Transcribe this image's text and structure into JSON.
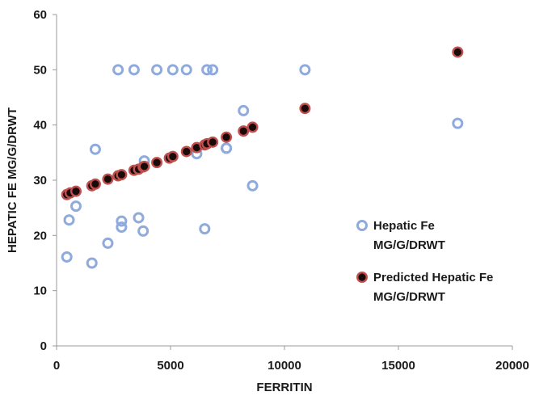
{
  "chart_data": {
    "type": "scatter",
    "xlabel": "FERRITIN",
    "ylabel": "HEPATIC FE MG/G/DRWT",
    "xlim": [
      0,
      20000
    ],
    "ylim": [
      0,
      60
    ],
    "x_ticks": [
      "0",
      "5000",
      "10000",
      "15000",
      "20000"
    ],
    "y_ticks": [
      "0",
      "10",
      "20",
      "30",
      "40",
      "50",
      "60"
    ],
    "grid": false,
    "legend_position": "right",
    "series": [
      {
        "name": "Hepatic Fe MG/G/DRWT",
        "legend_lines": [
          "Hepatic Fe",
          "MG/G/DRWT"
        ],
        "marker": "hollow-circle",
        "color": "#8FAADC",
        "points": [
          [
            2700,
            50
          ],
          [
            3400,
            50
          ],
          [
            4400,
            50
          ],
          [
            5100,
            50
          ],
          [
            5700,
            50
          ],
          [
            6600,
            50
          ],
          [
            6850,
            50
          ],
          [
            10900,
            50
          ],
          [
            17600,
            40.3
          ],
          [
            8200,
            42.6
          ],
          [
            7450,
            35.8
          ],
          [
            7450,
            35.8
          ],
          [
            6150,
            34.8
          ],
          [
            8600,
            29.0
          ],
          [
            1700,
            35.6
          ],
          [
            3850,
            33.5
          ],
          [
            850,
            25.3
          ],
          [
            550,
            22.8
          ],
          [
            2850,
            22.6
          ],
          [
            2850,
            21.5
          ],
          [
            3600,
            23.2
          ],
          [
            3800,
            20.8
          ],
          [
            2250,
            18.6
          ],
          [
            6500,
            21.2
          ],
          [
            450,
            16.1
          ],
          [
            1550,
            15.0
          ]
        ]
      },
      {
        "name": "Predicted Hepatic Fe MG/G/DRWT",
        "legend_lines": [
          "Predicted Hepatic Fe",
          "MG/G/DRWT"
        ],
        "marker": "filled-circle",
        "color": "#1a0a0a",
        "edge_color": "#C0504D",
        "points": [
          [
            450,
            27.4
          ],
          [
            600,
            27.7
          ],
          [
            850,
            28.0
          ],
          [
            1550,
            29.0
          ],
          [
            1700,
            29.3
          ],
          [
            2250,
            30.2
          ],
          [
            2700,
            30.8
          ],
          [
            2850,
            31.0
          ],
          [
            3400,
            31.8
          ],
          [
            3600,
            32.0
          ],
          [
            3800,
            32.4
          ],
          [
            3850,
            32.5
          ],
          [
            4400,
            33.2
          ],
          [
            4950,
            34.0
          ],
          [
            5100,
            34.3
          ],
          [
            5700,
            35.2
          ],
          [
            6150,
            35.9
          ],
          [
            6500,
            36.4
          ],
          [
            6600,
            36.6
          ],
          [
            6850,
            36.9
          ],
          [
            7450,
            37.8
          ],
          [
            8200,
            38.9
          ],
          [
            8600,
            39.6
          ],
          [
            10900,
            43.0
          ],
          [
            17600,
            53.2
          ]
        ]
      }
    ]
  }
}
